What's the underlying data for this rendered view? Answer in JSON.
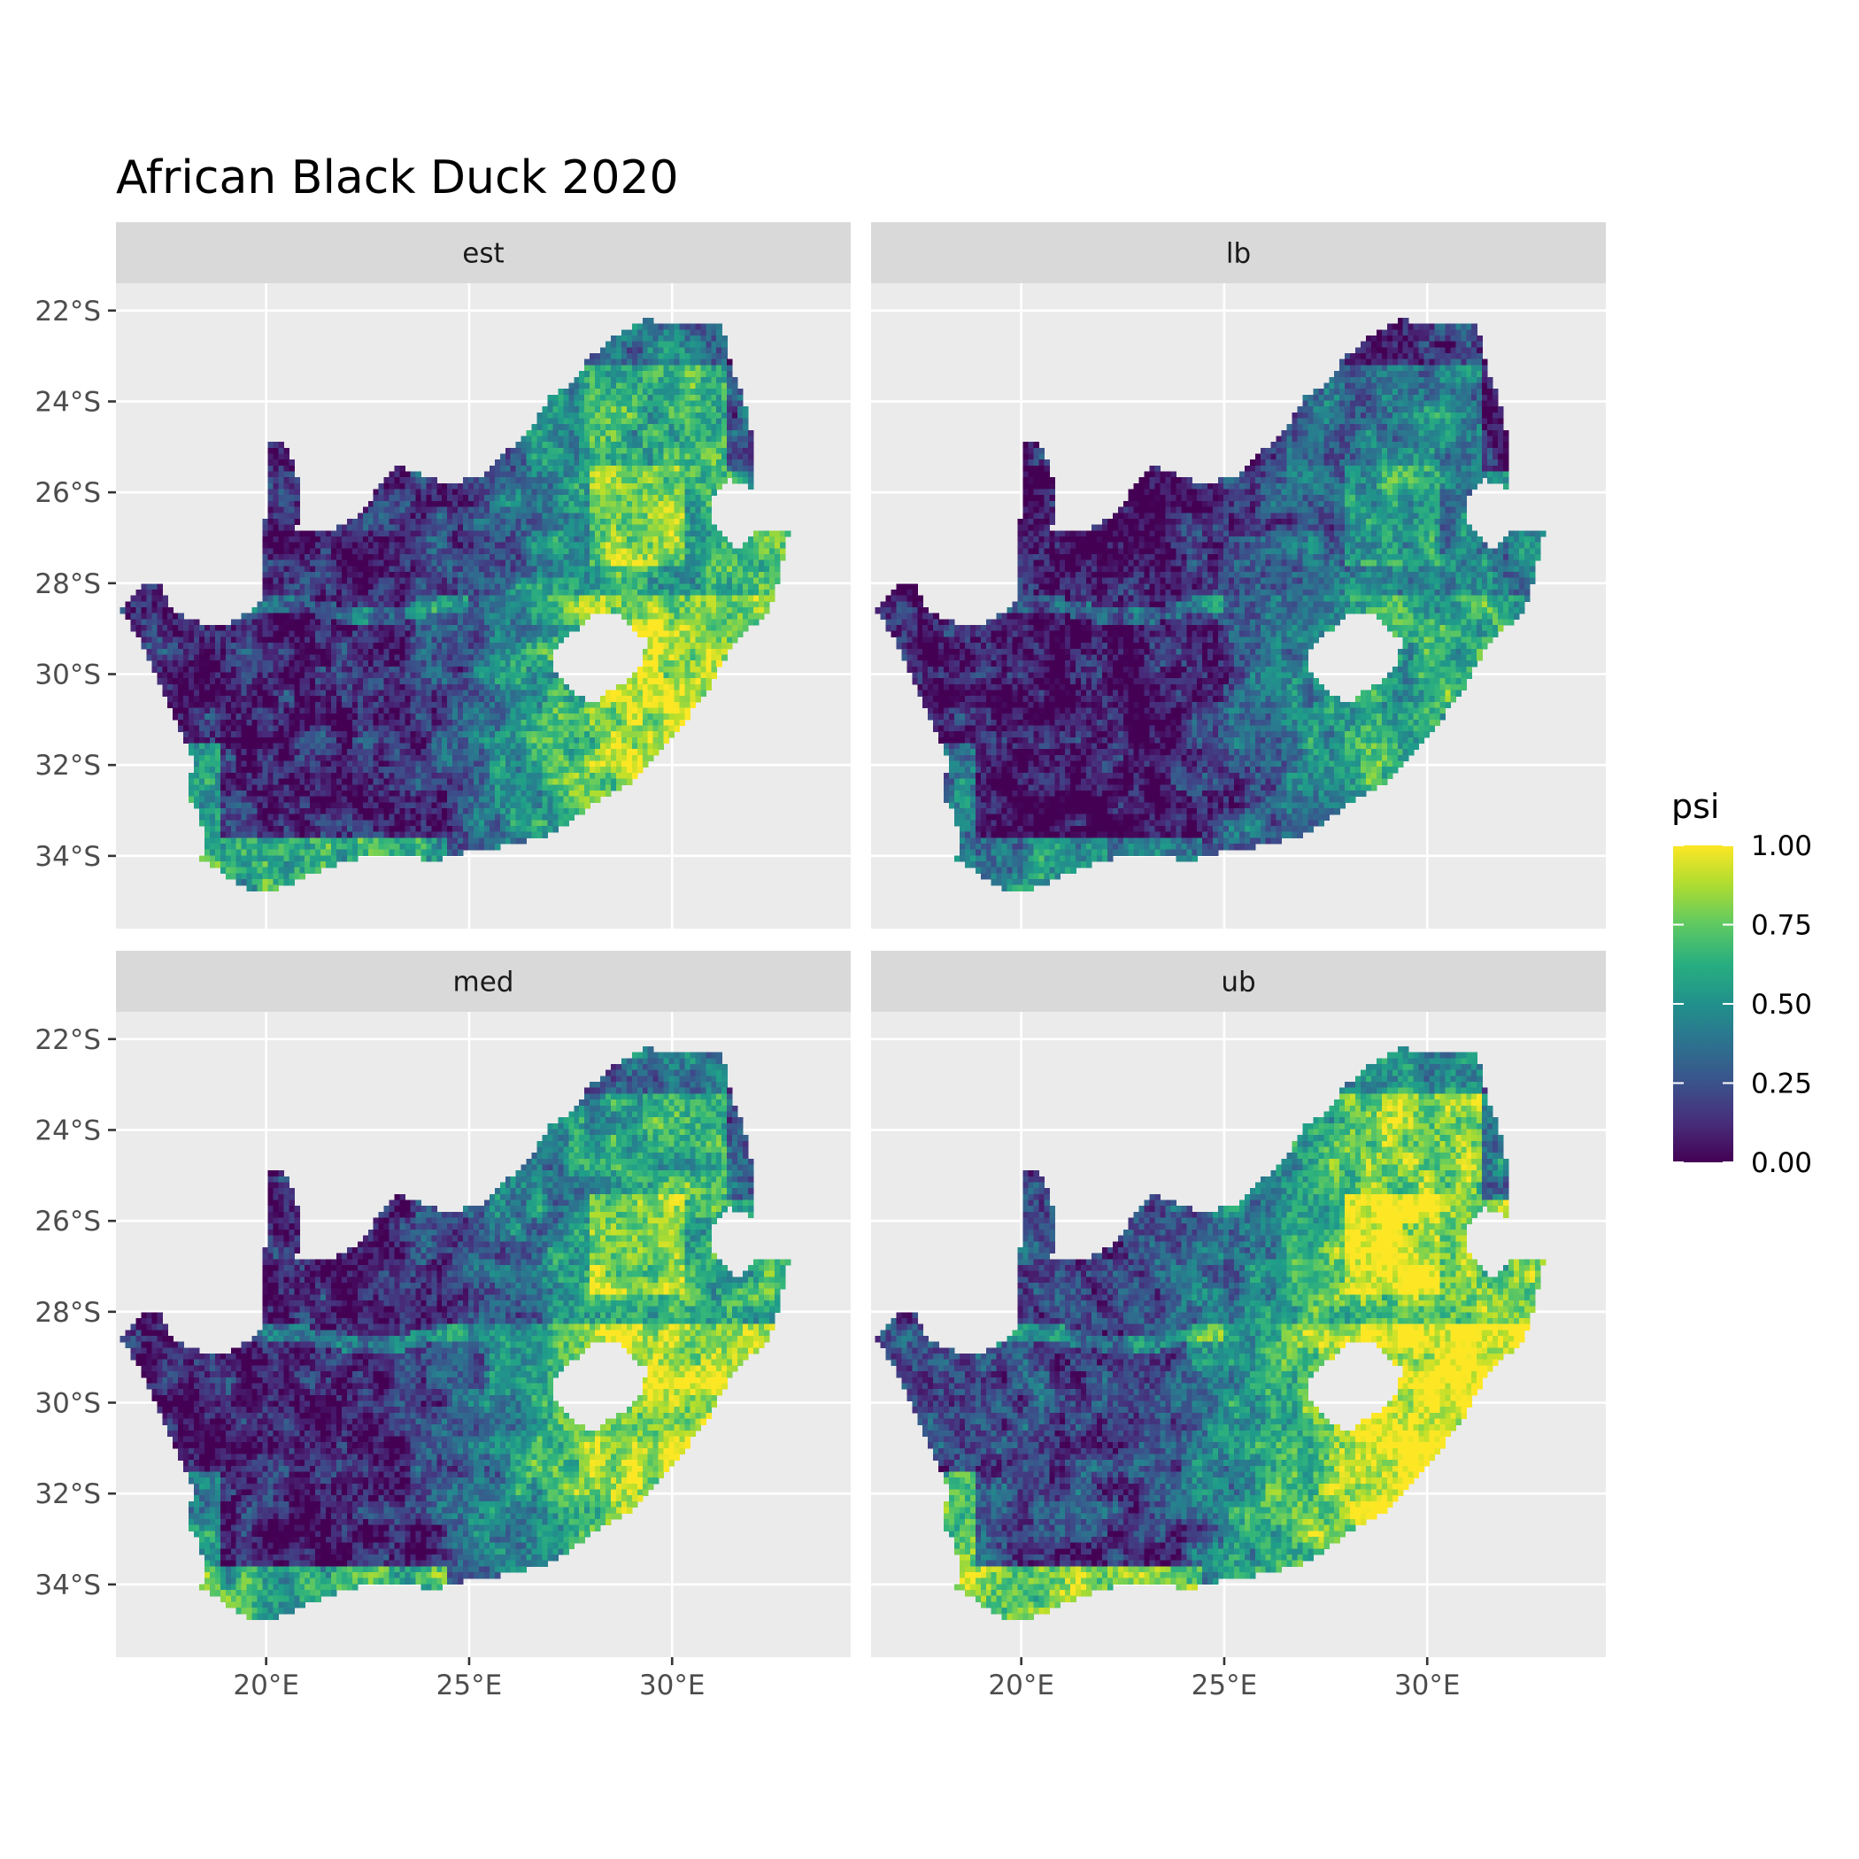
{
  "title": "African Black Duck 2020",
  "panels": [
    {
      "label": "est",
      "stats": {
        "arid_west": 0.12,
        "north_east": 0.62,
        "south_east": 0.86,
        "coast": 0.7
      }
    },
    {
      "label": "lb",
      "stats": {
        "arid_west": 0.05,
        "north_east": 0.42,
        "south_east": 0.62,
        "coast": 0.55
      }
    },
    {
      "label": "med",
      "stats": {
        "arid_west": 0.1,
        "north_east": 0.62,
        "south_east": 0.88,
        "coast": 0.72
      }
    },
    {
      "label": "ub",
      "stats": {
        "arid_west": 0.22,
        "north_east": 0.78,
        "south_east": 0.99,
        "coast": 0.97
      }
    }
  ],
  "axes": {
    "x": {
      "range": [
        16.3,
        34.4
      ],
      "ticks": [
        {
          "value": 20,
          "label": "20°E"
        },
        {
          "value": 25,
          "label": "25°E"
        },
        {
          "value": 30,
          "label": "30°E"
        }
      ]
    },
    "y": {
      "range": [
        -35.6,
        -21.4
      ],
      "ticks": [
        {
          "value": -22,
          "label": "22°S"
        },
        {
          "value": -24,
          "label": "24°S"
        },
        {
          "value": -26,
          "label": "26°S"
        },
        {
          "value": -28,
          "label": "28°S"
        },
        {
          "value": -30,
          "label": "30°S"
        },
        {
          "value": -32,
          "label": "32°S"
        },
        {
          "value": -34,
          "label": "34°S"
        }
      ]
    }
  },
  "legend": {
    "title": "psi",
    "colormap": "viridis",
    "range": [
      0,
      1
    ],
    "ticks": [
      {
        "value": 0,
        "label": "0.00"
      },
      {
        "value": 0.25,
        "label": "0.25"
      },
      {
        "value": 0.5,
        "label": "0.50"
      },
      {
        "value": 0.75,
        "label": "0.75"
      },
      {
        "value": 1,
        "label": "1.00"
      }
    ]
  },
  "colors": {
    "panel_bg": "#ebebeb",
    "strip_bg": "#d9d9d9",
    "grid": "#ffffff",
    "lesotho": "#ffffff"
  }
}
